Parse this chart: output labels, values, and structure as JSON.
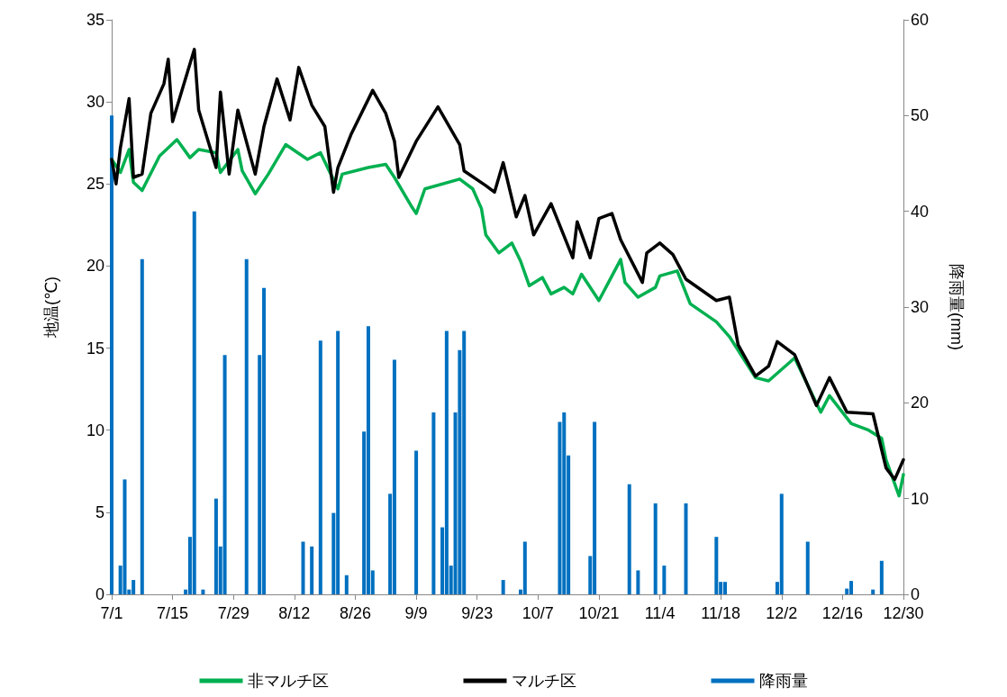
{
  "chart_data": {
    "type": "line",
    "ylabel": "地温(℃)",
    "y2label": "降雨量(mm)",
    "xlim": [
      "--07-01",
      "--12-30"
    ],
    "xticks": [
      {
        "value": "--07-01",
        "label": "7/1"
      },
      {
        "value": "--07-15",
        "label": "7/15"
      },
      {
        "value": "--07-29",
        "label": "7/29"
      },
      {
        "value": "--08-12",
        "label": "8/12"
      },
      {
        "value": "--08-26",
        "label": "8/26"
      },
      {
        "value": "--09-09",
        "label": "9/9"
      },
      {
        "value": "--09-23",
        "label": "9/23"
      },
      {
        "value": "--10-07",
        "label": "10/7"
      },
      {
        "value": "--10-21",
        "label": "10/21"
      },
      {
        "value": "--11-04",
        "label": "11/4"
      },
      {
        "value": "--11-18",
        "label": "11/18"
      },
      {
        "value": "--12-02",
        "label": "12/2"
      },
      {
        "value": "--12-16",
        "label": "12/16"
      },
      {
        "value": "--12-30",
        "label": "12/30"
      }
    ],
    "ylim": [
      0,
      35
    ],
    "yticks": [
      0,
      5,
      10,
      15,
      20,
      25,
      30,
      35
    ],
    "y2lim": [
      0,
      60
    ],
    "y2ticks": [
      0,
      10,
      20,
      30,
      40,
      50,
      60
    ],
    "grid": false,
    "legend": "bottom",
    "marker": "none",
    "series": [
      {
        "name": "非マルチ区",
        "color": "#00b050",
        "x": [
          "--07-01",
          "--07-03",
          "--07-05",
          "--07-06",
          "--07-08",
          "--07-12",
          "--07-16",
          "--07-19",
          "--07-21",
          "--07-25",
          "--07-26",
          "--07-30",
          "--07-31",
          "--08-03",
          "--08-06",
          "--08-10",
          "--08-15",
          "--08-18",
          "--08-20",
          "--08-22",
          "--08-23",
          "--08-29",
          "--09-02",
          "--09-04",
          "--09-08",
          "--09-09",
          "--09-11",
          "--09-19",
          "--09-22",
          "--09-24",
          "--09-25",
          "--09-28",
          "--10-01",
          "--10-03",
          "--10-05",
          "--10-08",
          "--10-10",
          "--10-13",
          "--10-15",
          "--10-17",
          "--10-21",
          "--10-24",
          "--10-26",
          "--10-27",
          "--10-30",
          "--11-03",
          "--11-04",
          "--11-08",
          "--11-11",
          "--11-17",
          "--11-20",
          "--11-26",
          "--11-29",
          "--12-02",
          "--12-05",
          "--12-11",
          "--12-13",
          "--12-18",
          "--12-22",
          "--12-25",
          "--12-26",
          "--12-29",
          "--12-30"
        ],
        "values": [
          26.5,
          25.7,
          27.1,
          25.1,
          24.6,
          26.7,
          27.7,
          26.6,
          27.1,
          26.9,
          25.7,
          27.1,
          25.8,
          24.4,
          25.6,
          27.4,
          26.5,
          26.9,
          25.8,
          24.7,
          25.6,
          26.0,
          26.2,
          25.4,
          23.6,
          23.2,
          24.7,
          25.3,
          24.7,
          23.5,
          21.9,
          20.8,
          21.4,
          20.3,
          18.8,
          19.3,
          18.3,
          18.7,
          18.3,
          19.5,
          17.9,
          19.4,
          20.4,
          19.0,
          18.1,
          18.7,
          19.4,
          19.7,
          17.7,
          16.6,
          15.7,
          13.2,
          13.0,
          13.7,
          14.4,
          11.1,
          12.1,
          10.4,
          10.0,
          9.5,
          8.2,
          6.0,
          7.3
        ]
      },
      {
        "name": "マルチ区",
        "color": "#000000",
        "x": [
          "--07-01",
          "--07-02",
          "--07-03",
          "--07-05",
          "--07-06",
          "--07-08",
          "--07-10",
          "--07-13",
          "--07-14",
          "--07-15",
          "--07-20",
          "--07-21",
          "--07-25",
          "--07-26",
          "--07-28",
          "--07-30",
          "--08-03",
          "--08-05",
          "--08-08",
          "--08-11",
          "--08-13",
          "--08-16",
          "--08-19",
          "--08-21",
          "--08-22",
          "--08-25",
          "--08-30",
          "--09-02",
          "--09-04",
          "--09-05",
          "--09-09",
          "--09-14",
          "--09-19",
          "--09-20",
          "--09-25",
          "--09-27",
          "--09-29",
          "--10-02",
          "--10-04",
          "--10-06",
          "--10-10",
          "--10-15",
          "--10-16",
          "--10-19",
          "--10-21",
          "--10-24",
          "--10-26",
          "--10-31",
          "--11-01",
          "--11-04",
          "--11-07",
          "--11-10",
          "--11-17",
          "--11-20",
          "--11-22",
          "--11-26",
          "--11-29",
          "--12-01",
          "--12-05",
          "--12-10",
          "--12-13",
          "--12-17",
          "--12-23",
          "--12-26",
          "--12-28",
          "--12-30"
        ],
        "values": [
          26.5,
          25.0,
          27.2,
          30.2,
          25.4,
          25.6,
          29.3,
          31.1,
          32.6,
          28.8,
          33.2,
          29.5,
          26.0,
          30.6,
          25.6,
          29.5,
          25.6,
          28.5,
          31.4,
          28.9,
          32.1,
          29.8,
          28.5,
          24.5,
          26.0,
          28.0,
          30.7,
          29.3,
          27.6,
          25.4,
          27.6,
          29.7,
          27.4,
          25.8,
          24.9,
          24.5,
          26.3,
          23.0,
          24.3,
          21.9,
          23.8,
          20.5,
          22.7,
          20.5,
          22.9,
          23.2,
          21.6,
          19.0,
          20.8,
          21.4,
          20.7,
          19.2,
          17.9,
          18.1,
          15.2,
          13.3,
          13.9,
          15.4,
          14.6,
          11.5,
          13.2,
          11.1,
          11.0,
          7.7,
          7.0,
          8.2
        ]
      },
      {
        "name": "降雨量",
        "type": "bar",
        "axis": "y2",
        "color": "#0070c0",
        "x": [
          "--07-01",
          "--07-03",
          "--07-04",
          "--07-05",
          "--07-06",
          "--07-08",
          "--07-18",
          "--07-19",
          "--07-20",
          "--07-22",
          "--07-25",
          "--07-26",
          "--07-27",
          "--08-01",
          "--08-04",
          "--08-05",
          "--08-14",
          "--08-16",
          "--08-18",
          "--08-21",
          "--08-22",
          "--08-24",
          "--08-28",
          "--08-29",
          "--08-30",
          "--09-03",
          "--09-04",
          "--09-09",
          "--09-13",
          "--09-15",
          "--09-16",
          "--09-17",
          "--09-18",
          "--09-19",
          "--09-20",
          "--09-29",
          "--10-03",
          "--10-04",
          "--10-12",
          "--10-13",
          "--10-14",
          "--10-19",
          "--10-20",
          "--10-28",
          "--10-30",
          "--11-03",
          "--11-05",
          "--11-10",
          "--11-17",
          "--11-18",
          "--11-19",
          "--12-01",
          "--12-02",
          "--12-08",
          "--12-17",
          "--12-18",
          "--12-23",
          "--12-25"
        ],
        "values": [
          50,
          3,
          12,
          0.5,
          1.5,
          35,
          0.5,
          6,
          40,
          0.5,
          10,
          5,
          25,
          35,
          25,
          32,
          5.5,
          5,
          26.5,
          8.5,
          27.5,
          2,
          17,
          28,
          2.5,
          10.5,
          24.5,
          15,
          19,
          7,
          27.5,
          3,
          19,
          25.5,
          27.5,
          1.5,
          0.5,
          5.5,
          18,
          19,
          14.5,
          4,
          18,
          11.5,
          2.5,
          9.5,
          3,
          9.5,
          6,
          1.3,
          1.3,
          1.3,
          10.5,
          5.5,
          0.6,
          1.4,
          0.5,
          3.5
        ]
      }
    ]
  }
}
